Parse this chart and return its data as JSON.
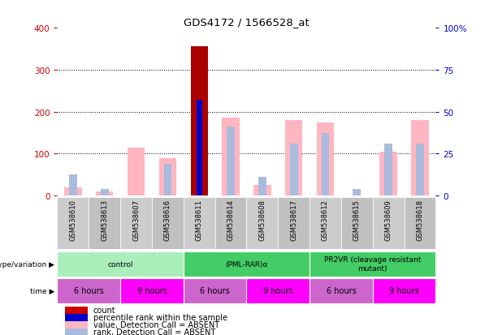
{
  "title": "GDS4172 / 1566528_at",
  "samples": [
    "GSM538610",
    "GSM538613",
    "GSM538607",
    "GSM538616",
    "GSM538611",
    "GSM538614",
    "GSM538608",
    "GSM538617",
    "GSM538612",
    "GSM538615",
    "GSM538609",
    "GSM538618"
  ],
  "count_values": [
    0,
    0,
    0,
    0,
    355,
    0,
    0,
    0,
    0,
    0,
    0,
    0
  ],
  "percentile_rank_values": [
    0,
    0,
    0,
    0,
    57,
    0,
    0,
    0,
    0,
    0,
    0,
    0
  ],
  "absent_value": [
    20,
    10,
    115,
    90,
    0,
    185,
    25,
    180,
    175,
    0,
    105,
    180
  ],
  "absent_rank": [
    50,
    15,
    0,
    75,
    0,
    165,
    45,
    125,
    150,
    15,
    125,
    125
  ],
  "left_yaxis_ticks": [
    0,
    100,
    200,
    300,
    400
  ],
  "right_yaxis_ticks": [
    0,
    25,
    50,
    75,
    100
  ],
  "right_yaxis_labels": [
    "0",
    "25",
    "50",
    "75",
    "100%"
  ],
  "ylim": [
    0,
    400
  ],
  "right_ylim": [
    0,
    100
  ],
  "count_color": "#AA0000",
  "percentile_color": "#0000CC",
  "absent_value_color": "#FFB6C1",
  "absent_rank_color": "#AABBDD",
  "background_color": "#ffffff",
  "left_label_color": "#CC0000",
  "right_label_color": "#0000CC",
  "grid_ticks": [
    100,
    200,
    300
  ],
  "xtick_bg": "#C8C8C8",
  "genotype_groups": [
    {
      "label": "control",
      "start": 0,
      "end": 4,
      "color": "#AAEEBB"
    },
    {
      "label": "(PML-RAR)α",
      "start": 4,
      "end": 8,
      "color": "#44CC66"
    },
    {
      "label": "PR2VR (cleavage resistant\nmutant)",
      "start": 8,
      "end": 12,
      "color": "#44CC66"
    }
  ],
  "time_groups": [
    {
      "label": "6 hours",
      "start": 0,
      "end": 2,
      "color": "#CC66CC"
    },
    {
      "label": "9 hours",
      "start": 2,
      "end": 4,
      "color": "#FF00FF"
    },
    {
      "label": "6 hours",
      "start": 4,
      "end": 6,
      "color": "#CC66CC"
    },
    {
      "label": "9 hours",
      "start": 6,
      "end": 8,
      "color": "#FF00FF"
    },
    {
      "label": "6 hours",
      "start": 8,
      "end": 10,
      "color": "#CC66CC"
    },
    {
      "label": "9 hours",
      "start": 10,
      "end": 12,
      "color": "#FF00FF"
    }
  ],
  "legend_items": [
    {
      "label": "count",
      "color": "#CC0000"
    },
    {
      "label": "percentile rank within the sample",
      "color": "#0000CC"
    },
    {
      "label": "value, Detection Call = ABSENT",
      "color": "#FFB6C1"
    },
    {
      "label": "rank, Detection Call = ABSENT",
      "color": "#AABBDD"
    }
  ]
}
